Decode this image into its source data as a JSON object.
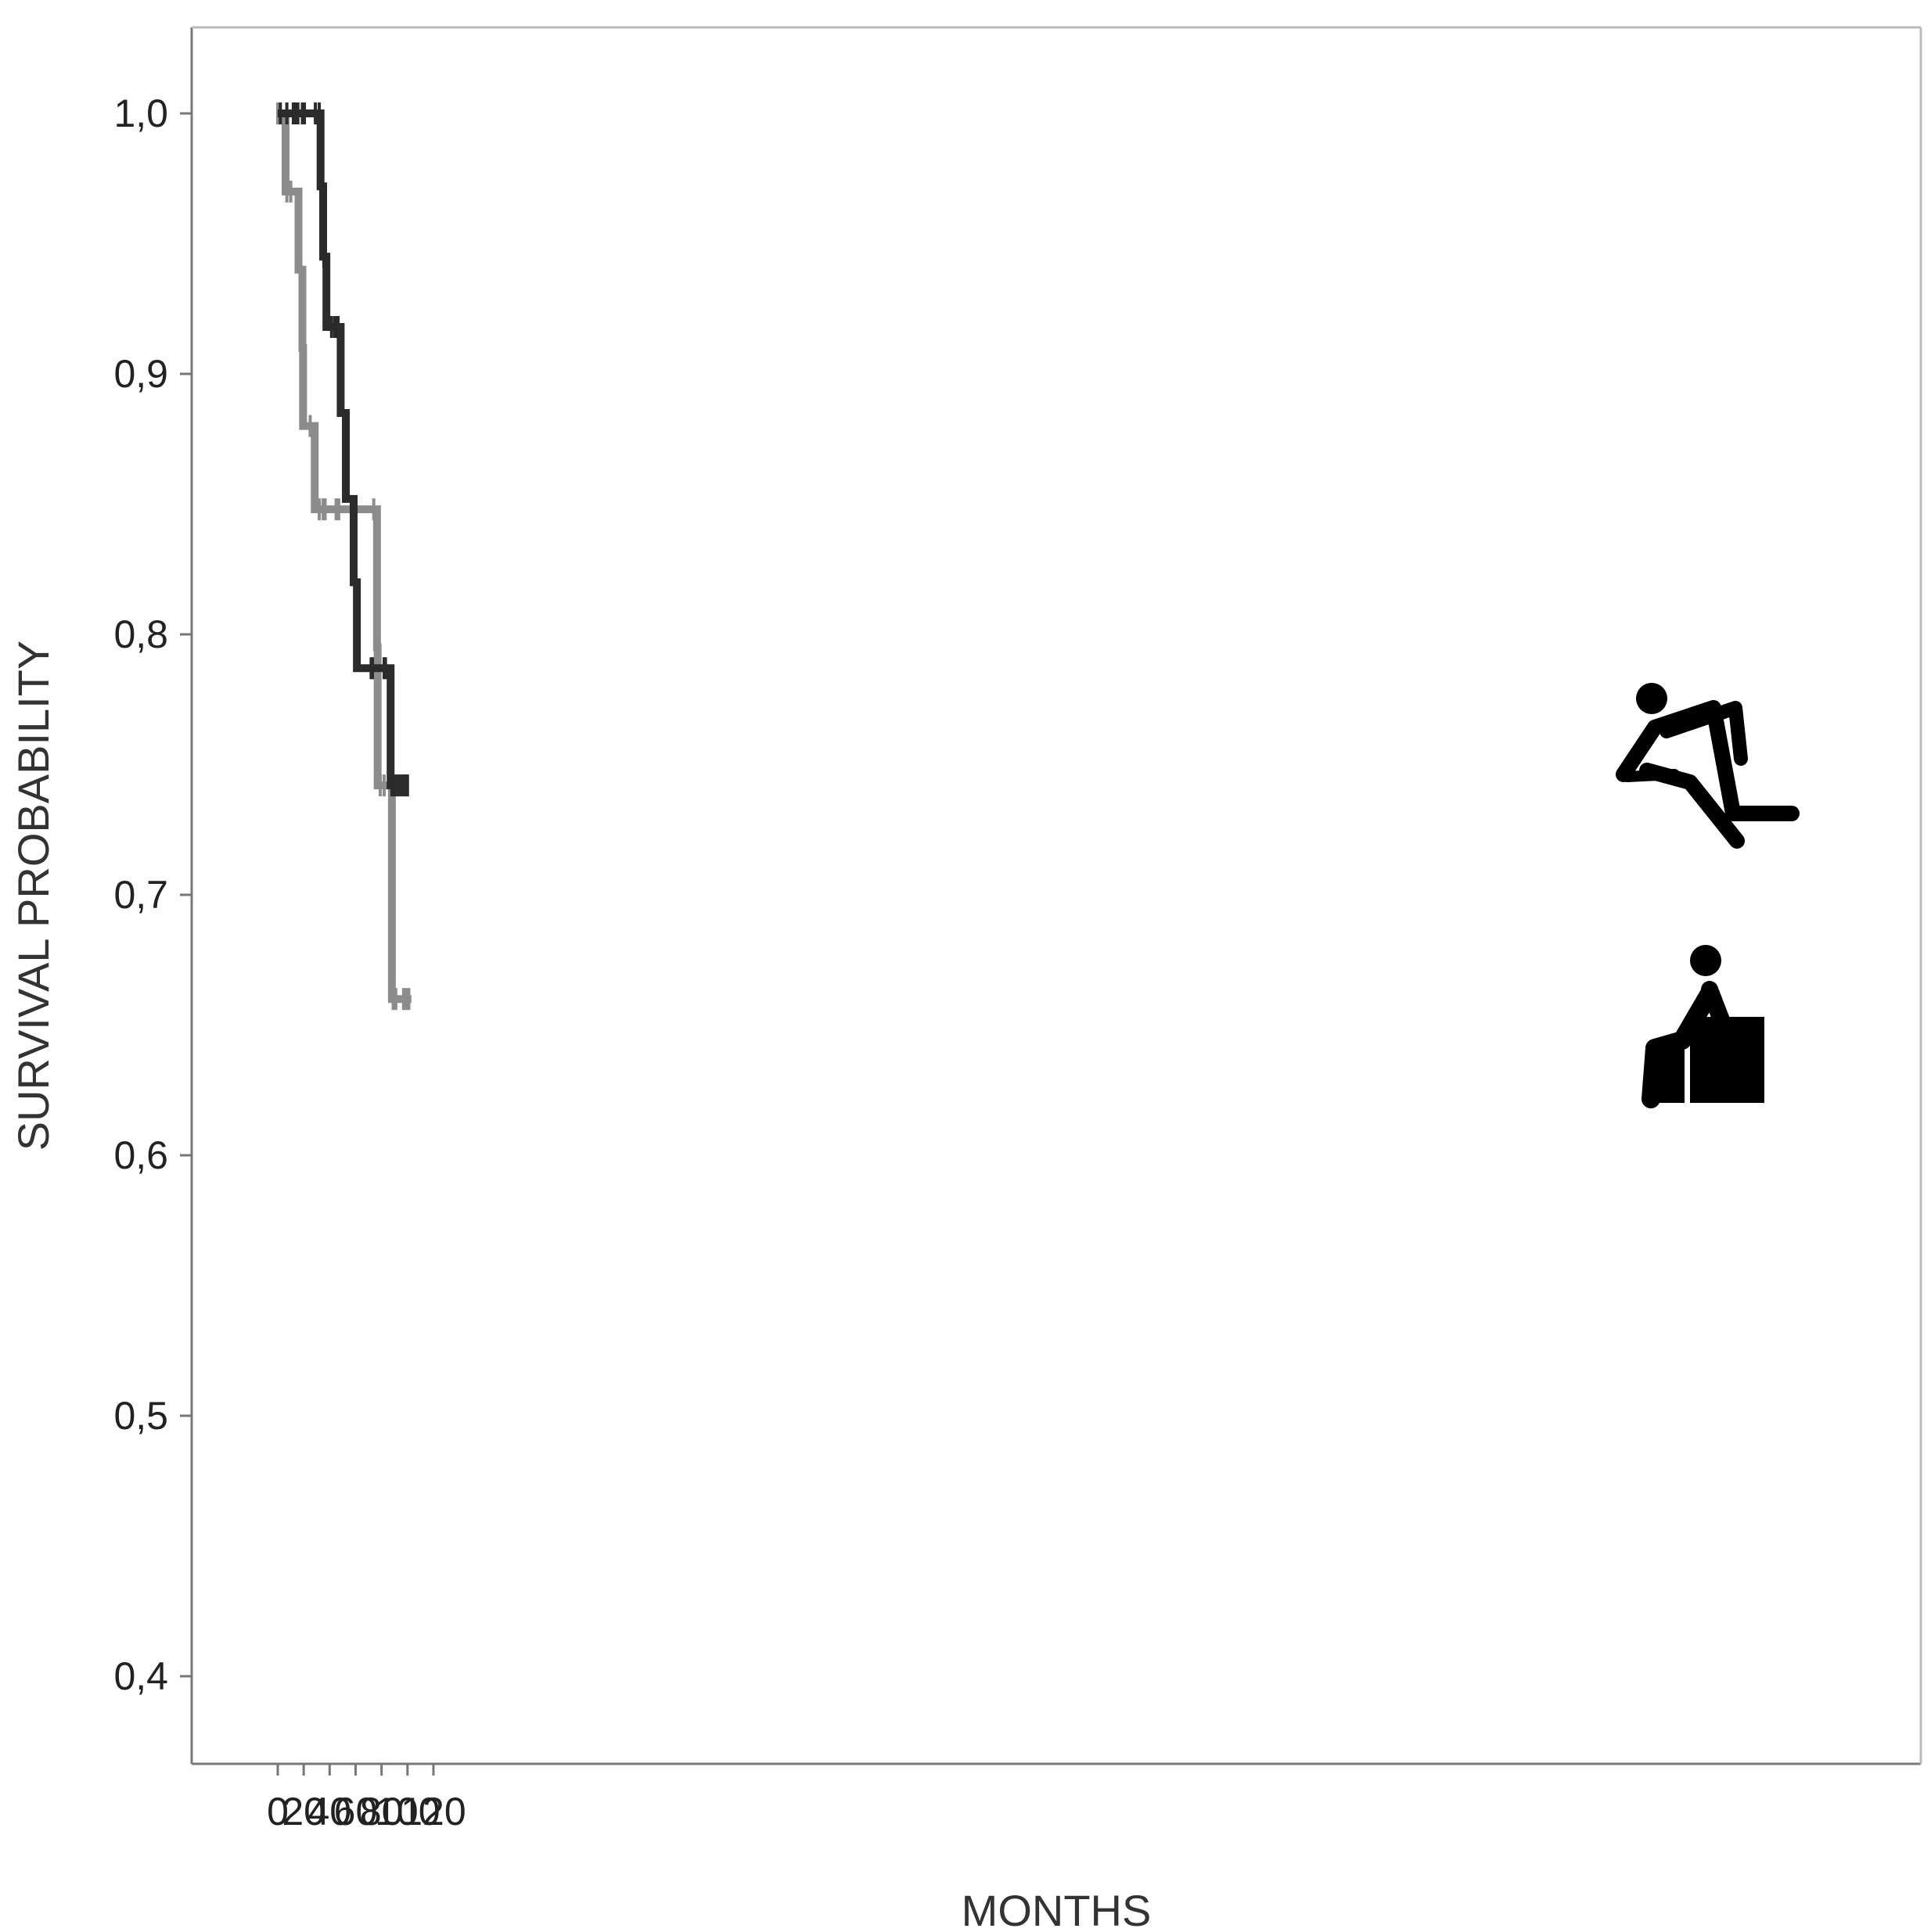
{
  "chart_data": {
    "type": "line",
    "subtype": "kaplan-meier-step",
    "xlabel": "MONTHS",
    "ylabel": "SURVIVAL PROBABILITY",
    "xlim": [
      -3,
      126
    ],
    "ylim": [
      0.37,
      1.035
    ],
    "x_ticks": [
      0,
      20,
      40,
      60,
      80,
      100,
      120
    ],
    "x_tick_labels": [
      "0",
      "20",
      "40",
      "60",
      "80",
      "100",
      "120"
    ],
    "y_ticks": [
      0.4,
      0.5,
      0.6,
      0.7,
      0.8,
      0.9,
      1.0
    ],
    "y_tick_labels": [
      "0,4",
      "0,5",
      "0,6",
      "0,7",
      "0,8",
      "0,9",
      "1,0"
    ],
    "grid": false,
    "legend": "none",
    "series": [
      {
        "color": "#8c8c8c",
        "icon": "sitting-person-icon",
        "steps": [
          [
            0,
            1.0
          ],
          [
            6,
            0.97
          ],
          [
            16,
            0.94
          ],
          [
            19,
            0.91
          ],
          [
            19.5,
            0.88
          ],
          [
            28.5,
            0.848
          ],
          [
            76.5,
            0.795
          ],
          [
            77,
            0.742
          ],
          [
            88,
            0.66
          ],
          [
            103,
            0.66
          ]
        ],
        "censored": [
          [
            0,
            1.0
          ],
          [
            1,
            1.0
          ],
          [
            1.5,
            1.0
          ],
          [
            7,
            0.97
          ],
          [
            10,
            0.97
          ],
          [
            25,
            0.88
          ],
          [
            32,
            0.848
          ],
          [
            35,
            0.848
          ],
          [
            36.5,
            0.848
          ],
          [
            45,
            0.848
          ],
          [
            47,
            0.848
          ],
          [
            74,
            0.848
          ],
          [
            79,
            0.742
          ],
          [
            82,
            0.742
          ],
          [
            89,
            0.66
          ],
          [
            91,
            0.66
          ],
          [
            97,
            0.66
          ],
          [
            99,
            0.66
          ],
          [
            101,
            0.66
          ]
        ]
      },
      {
        "color": "#2b2b2b",
        "icon": "running-person-icon",
        "steps": [
          [
            0,
            1.0
          ],
          [
            33,
            0.972
          ],
          [
            35,
            0.945
          ],
          [
            37.5,
            0.918
          ],
          [
            48.5,
            0.885
          ],
          [
            52.5,
            0.852
          ],
          [
            58.5,
            0.82
          ],
          [
            61,
            0.787
          ],
          [
            87,
            0.742
          ],
          [
            101,
            0.742
          ]
        ],
        "censored": [
          [
            2,
            1.0
          ],
          [
            7,
            1.0
          ],
          [
            12,
            1.0
          ],
          [
            14,
            1.0
          ],
          [
            15.5,
            1.0
          ],
          [
            19,
            1.0
          ],
          [
            20.5,
            1.0
          ],
          [
            29,
            1.0
          ],
          [
            32,
            1.0
          ],
          [
            35.5,
            0.945
          ],
          [
            36.5,
            0.945
          ],
          [
            41.5,
            0.918
          ],
          [
            44,
            0.918
          ],
          [
            45.5,
            0.918
          ],
          [
            46.5,
            0.918
          ],
          [
            72,
            0.787
          ],
          [
            73,
            0.787
          ],
          [
            82,
            0.787
          ],
          [
            83,
            0.787
          ],
          [
            88,
            0.742
          ],
          [
            89.5,
            0.742
          ],
          [
            91,
            0.742
          ],
          [
            93,
            0.742
          ],
          [
            95,
            0.742
          ],
          [
            97,
            0.742
          ],
          [
            98.5,
            0.742
          ],
          [
            100,
            0.742
          ]
        ]
      }
    ]
  }
}
